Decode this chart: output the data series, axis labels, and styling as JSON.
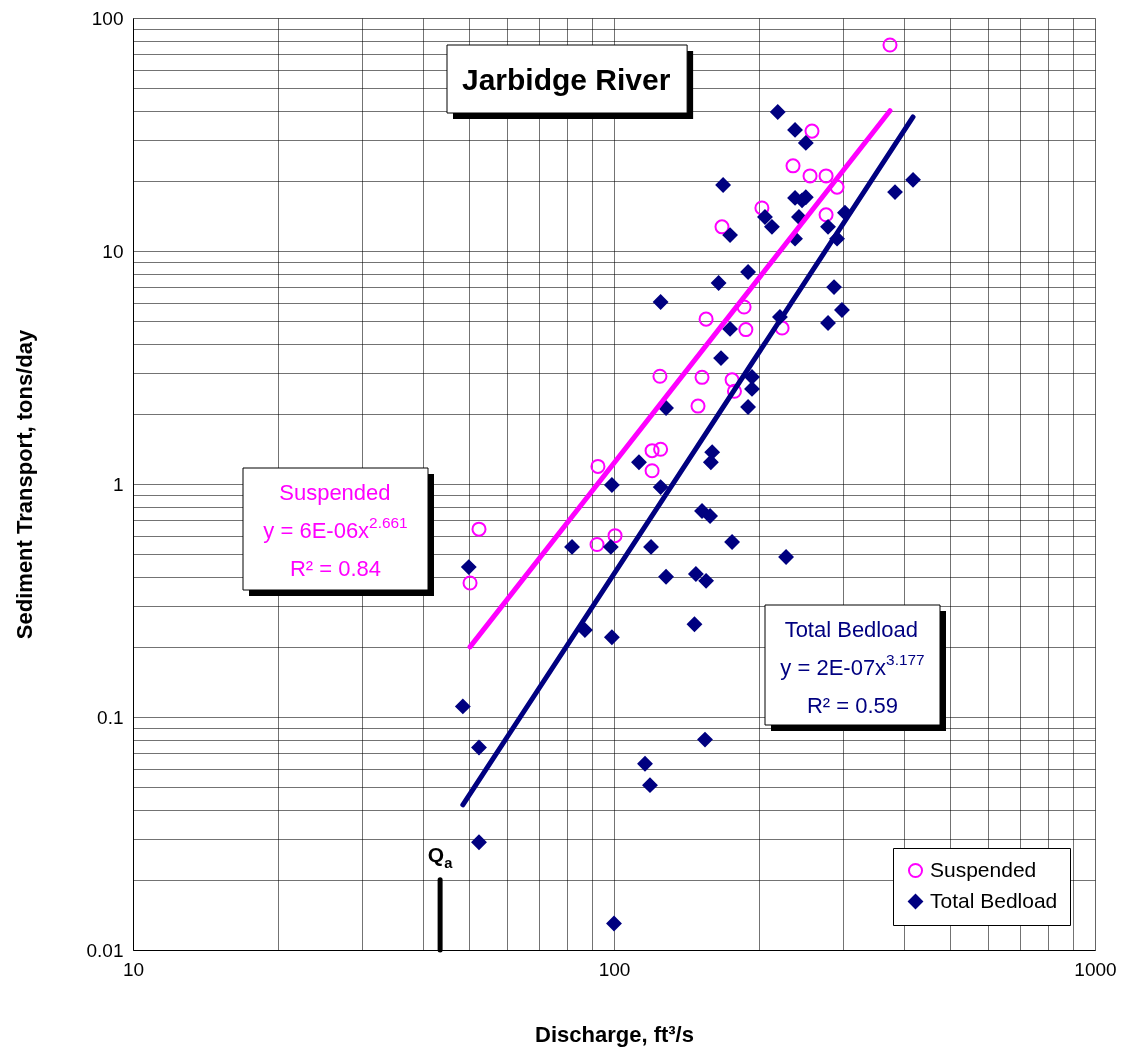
{
  "chart_data": {
    "type": "scatter",
    "title": "Jarbidge River",
    "xlabel": "Discharge, ft³/s",
    "ylabel": "Sediment Transport, tons/day",
    "log": "xy",
    "xlim": [
      10,
      1000
    ],
    "ylim": [
      0.01,
      100
    ],
    "xticks": [
      10,
      {
        "value": 20,
        "label": null
      },
      {
        "value": 30,
        "label": null
      },
      {
        "value": 40,
        "label": null
      },
      {
        "value": 50,
        "label": null
      },
      {
        "value": 60,
        "label": null
      },
      {
        "value": 70,
        "label": null
      },
      {
        "value": 80,
        "label": null
      },
      {
        "value": 90,
        "label": null
      },
      100,
      {
        "value": 200,
        "label": null
      },
      {
        "value": 300,
        "label": null
      },
      {
        "value": 400,
        "label": null
      },
      {
        "value": 500,
        "label": null
      },
      {
        "value": 600,
        "label": null
      },
      {
        "value": 700,
        "label": null
      },
      {
        "value": 800,
        "label": null
      },
      {
        "value": 900,
        "label": null
      },
      1000
    ],
    "yticks": [
      0.01,
      {
        "value": 0.02,
        "label": null
      },
      {
        "value": 0.03,
        "label": null
      },
      {
        "value": 0.04,
        "label": null
      },
      {
        "value": 0.05,
        "label": null
      },
      {
        "value": 0.06,
        "label": null
      },
      {
        "value": 0.07,
        "label": null
      },
      {
        "value": 0.08,
        "label": null
      },
      {
        "value": 0.09,
        "label": null
      },
      0.1,
      {
        "value": 0.2,
        "label": null
      },
      {
        "value": 0.3,
        "label": null
      },
      {
        "value": 0.4,
        "label": null
      },
      {
        "value": 0.5,
        "label": null
      },
      {
        "value": 0.6,
        "label": null
      },
      {
        "value": 0.7,
        "label": null
      },
      {
        "value": 0.8,
        "label": null
      },
      {
        "value": 0.9,
        "label": null
      },
      1,
      {
        "value": 2,
        "label": null
      },
      {
        "value": 3,
        "label": null
      },
      {
        "value": 4,
        "label": null
      },
      {
        "value": 5,
        "label": null
      },
      {
        "value": 6,
        "label": null
      },
      {
        "value": 7,
        "label": null
      },
      {
        "value": 8,
        "label": null
      },
      {
        "value": 9,
        "label": null
      },
      10,
      {
        "value": 20,
        "label": null
      },
      {
        "value": 30,
        "label": null
      },
      {
        "value": 40,
        "label": null
      },
      {
        "value": 50,
        "label": null
      },
      {
        "value": 60,
        "label": null
      },
      {
        "value": 70,
        "label": null
      },
      {
        "value": 80,
        "label": null
      },
      {
        "value": 90,
        "label": null
      },
      100
    ],
    "grid": true,
    "legend": "bottom right",
    "series": [
      {
        "name": "Suspended",
        "type": "scatter",
        "marker": "circle",
        "color": "#ff00ff",
        "x": [
          50.2,
          52.4,
          92.2,
          92.6,
          100.5,
          120,
          120,
          125,
          124.6,
          149.5,
          152.4,
          155.4,
          167.7,
          176,
          178,
          186.4,
          188,
          203,
          223.6,
          235.6,
          255.6,
          258,
          276,
          276,
          290.9,
          374.8
        ],
        "values": [
          0.376,
          0.64,
          0.55,
          1.19,
          0.6,
          1.14,
          1.39,
          1.41,
          2.9,
          2.16,
          2.87,
          5.1,
          12.7,
          2.8,
          2.5,
          5.75,
          4.6,
          15.3,
          4.67,
          23.2,
          21.0,
          32.7,
          21.0,
          14.3,
          18.8,
          76.6
        ]
      },
      {
        "name": "Total Bedload",
        "type": "scatter",
        "marker": "diamond",
        "color": "#000080",
        "x": [
          219,
          237.9,
          250.5,
          418.5,
          168.6,
          383.9,
          250.5,
          237.9,
          246,
          302.1,
          242.4,
          206,
          213,
          278.6,
          174.3,
          290.9,
          237.9,
          190,
          165,
          125,
          286.7,
          297.8,
          221.3,
          278.6,
          174.3,
          166.9,
          193.6,
          193.6,
          190,
          128.3,
          160,
          159,
          112.7,
          99,
          125,
          152.4,
          158.4,
          176,
          227.9,
          81.8,
          98.5,
          119.4,
          128.3,
          148,
          155.4,
          147,
          87,
          99,
          49.9,
          48.5,
          52.4,
          154.6,
          116,
          118.8,
          52.4,
          100
        ],
        "values": [
          39.5,
          33.1,
          29.1,
          20.2,
          19.2,
          17.9,
          17.0,
          16.9,
          16.5,
          14.6,
          14.0,
          14.0,
          12.7,
          12.7,
          11.7,
          11.3,
          11.3,
          8.13,
          7.29,
          6.04,
          7.0,
          5.58,
          5.21,
          4.91,
          4.63,
          3.47,
          2.88,
          2.56,
          2.14,
          2.12,
          1.37,
          1.24,
          1.24,
          0.99,
          0.97,
          0.766,
          0.729,
          0.564,
          0.486,
          0.537,
          0.537,
          0.537,
          0.4,
          0.411,
          0.384,
          0.25,
          0.236,
          0.22,
          0.44,
          0.111,
          0.074,
          0.08,
          0.063,
          0.051,
          0.029,
          0.013
        ]
      },
      {
        "type": "line",
        "color": "#ff00ff",
        "line_style": "solid",
        "x": [
          50.2,
          374.8
        ],
        "values": [
          0.2,
          40
        ]
      },
      {
        "type": "line",
        "color": "#000080",
        "line_style": "solid",
        "x": [
          48.5,
          418.5
        ],
        "values": [
          0.042,
          37.6
        ]
      },
      {
        "type": "line",
        "color": "#000000",
        "line_style": "solid",
        "x": [
          43.5,
          43.5
        ],
        "values": [
          0.01,
          0.02
        ]
      }
    ],
    "annotations": [
      "Suspended",
      "y = 6E-06x$^{2.661}$",
      "R² = 0.84",
      "Total Bedload",
      "y = 2E-07x$^{3.177}$",
      "R² = 0.59",
      {
        "text": "Q$_{a}$",
        "x": 43.5,
        "y": 0.02
      }
    ]
  }
}
